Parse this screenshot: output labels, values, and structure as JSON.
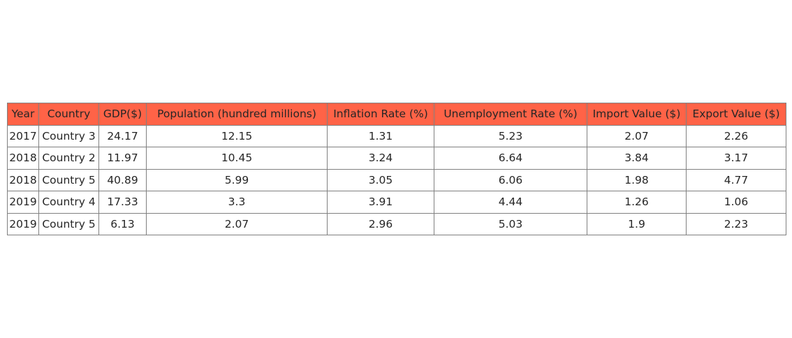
{
  "chart_data": {
    "type": "table",
    "header_color": "#ff6347",
    "columns": [
      "Year",
      "Country",
      "GDP($)",
      "Population (hundred millions)",
      "Inflation Rate (%)",
      "Unemployment Rate (%)",
      "Import Value ($)",
      "Export Value ($)"
    ],
    "rows": [
      [
        "2017",
        "Country 3",
        "24.17",
        "12.15",
        "1.31",
        "5.23",
        "2.07",
        "2.26"
      ],
      [
        "2018",
        "Country 2",
        "11.97",
        "10.45",
        "3.24",
        "6.64",
        "3.84",
        "3.17"
      ],
      [
        "2018",
        "Country 5",
        "40.89",
        "5.99",
        "3.05",
        "6.06",
        "1.98",
        "4.77"
      ],
      [
        "2019",
        "Country 4",
        "17.33",
        "3.3",
        "3.91",
        "4.44",
        "1.26",
        "1.06"
      ],
      [
        "2019",
        "Country 5",
        "6.13",
        "2.07",
        "2.96",
        "5.03",
        "1.9",
        "2.23"
      ]
    ]
  }
}
